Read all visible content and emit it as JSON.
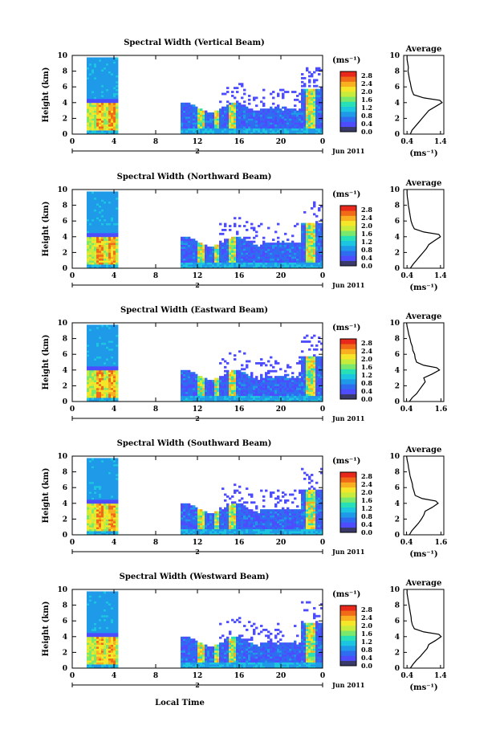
{
  "chart_data": {
    "type": "heatmap",
    "date_label": "Jun 2011",
    "day_label": "2",
    "x_label": "Local Time",
    "time_ticks": [
      "0",
      "4",
      "8",
      "12",
      "16",
      "20",
      "0"
    ],
    "height_ticks": [
      "0",
      "2",
      "4",
      "6",
      "8",
      "10"
    ],
    "y_label": "Height (km)",
    "xlim": [
      0,
      24
    ],
    "ylim": [
      0,
      10
    ],
    "colorbar": {
      "label": "(ms⁻¹)",
      "range": [
        0,
        3.0
      ],
      "ticks": [
        "0.0",
        "0.4",
        "0.8",
        "1.2",
        "1.6",
        "2.0",
        "2.4",
        "2.8"
      ],
      "colors": [
        "#3a3a6a",
        "#4d4dff",
        "#2f6df0",
        "#1f9ae8",
        "#1cc6e0",
        "#28e0b8",
        "#7ae86a",
        "#c8ec3c",
        "#f6e62a",
        "#f8b020",
        "#f06a18",
        "#e8281a"
      ]
    },
    "panels": [
      {
        "title": "Spectral Width (Vertical Beam)",
        "avg_title": "Average",
        "avg_xticks": [
          "0.4",
          "1.4"
        ],
        "avg_xlabel": "(ms⁻¹)",
        "avg_profile": [
          [
            0,
            0.5
          ],
          [
            0.5,
            0.55
          ],
          [
            1,
            0.65
          ],
          [
            1.5,
            0.75
          ],
          [
            2,
            0.85
          ],
          [
            2.5,
            0.95
          ],
          [
            3,
            1.05
          ],
          [
            3.5,
            1.25
          ],
          [
            4,
            1.45
          ],
          [
            4.3,
            1.38
          ],
          [
            4.6,
            0.9
          ],
          [
            5,
            0.6
          ],
          [
            5.5,
            0.55
          ],
          [
            6,
            0.52
          ],
          [
            6.5,
            0.5
          ],
          [
            7,
            0.47
          ],
          [
            7.5,
            0.45
          ],
          [
            8,
            0.43
          ],
          [
            8.5,
            0.44
          ],
          [
            9,
            0.42
          ],
          [
            9.5,
            0.4
          ],
          [
            10,
            0.4
          ]
        ]
      },
      {
        "title": "Spectral Width (Northward Beam)",
        "avg_title": "Average",
        "avg_xticks": [
          "0.4",
          "1.4"
        ],
        "avg_xlabel": "(ms⁻¹)",
        "avg_profile": [
          [
            0,
            0.5
          ],
          [
            0.5,
            0.58
          ],
          [
            1,
            0.68
          ],
          [
            1.5,
            0.78
          ],
          [
            2,
            0.88
          ],
          [
            2.5,
            0.98
          ],
          [
            3,
            1.05
          ],
          [
            3.5,
            1.22
          ],
          [
            4,
            1.4
          ],
          [
            4.3,
            1.35
          ],
          [
            4.6,
            0.9
          ],
          [
            5,
            0.62
          ],
          [
            5.5,
            0.56
          ],
          [
            6,
            0.52
          ],
          [
            6.5,
            0.5
          ],
          [
            7,
            0.48
          ],
          [
            7.5,
            0.46
          ],
          [
            8,
            0.44
          ],
          [
            8.5,
            0.43
          ],
          [
            9,
            0.41
          ],
          [
            9.5,
            0.4
          ],
          [
            10,
            0.4
          ]
        ]
      },
      {
        "title": "Spectral Width (Eastward Beam)",
        "avg_title": "Average",
        "avg_xticks": [
          "0.4",
          "1.6"
        ],
        "avg_xlabel": "",
        "avg_profile": [
          [
            0,
            0.5
          ],
          [
            0.5,
            0.6
          ],
          [
            1,
            0.75
          ],
          [
            1.5,
            0.85
          ],
          [
            2,
            0.95
          ],
          [
            2.5,
            1.05
          ],
          [
            3,
            1.0
          ],
          [
            3.5,
            1.3
          ],
          [
            4,
            1.55
          ],
          [
            4.3,
            1.45
          ],
          [
            4.6,
            1.0
          ],
          [
            5,
            0.75
          ],
          [
            5.5,
            0.7
          ],
          [
            6,
            0.68
          ],
          [
            6.5,
            0.62
          ],
          [
            7,
            0.6
          ],
          [
            7.5,
            0.55
          ],
          [
            8,
            0.52
          ],
          [
            8.5,
            0.48
          ],
          [
            9,
            0.45
          ],
          [
            9.5,
            0.42
          ],
          [
            10,
            0.4
          ]
        ]
      },
      {
        "title": "Spectral Width (Southward Beam)",
        "avg_title": "Average",
        "avg_xticks": [
          "0.4",
          "1.6"
        ],
        "avg_xlabel": "(ms⁻¹)",
        "avg_profile": [
          [
            0,
            0.5
          ],
          [
            0.5,
            0.58
          ],
          [
            1,
            0.7
          ],
          [
            1.5,
            0.82
          ],
          [
            2,
            0.92
          ],
          [
            2.5,
            1.0
          ],
          [
            3,
            1.05
          ],
          [
            3.5,
            1.3
          ],
          [
            4,
            1.5
          ],
          [
            4.3,
            1.42
          ],
          [
            4.6,
            0.95
          ],
          [
            5,
            0.7
          ],
          [
            5.5,
            0.66
          ],
          [
            6,
            0.62
          ],
          [
            6.5,
            0.6
          ],
          [
            7,
            0.56
          ],
          [
            7.5,
            0.52
          ],
          [
            8,
            0.5
          ],
          [
            8.5,
            0.47
          ],
          [
            9,
            0.45
          ],
          [
            9.5,
            0.42
          ],
          [
            10,
            0.4
          ]
        ]
      },
      {
        "title": "Spectral Width (Westward Beam)",
        "avg_title": "Average",
        "avg_xticks": [
          "0.4",
          "1.4"
        ],
        "avg_xlabel": "(ms⁻¹)",
        "avg_profile": [
          [
            0,
            0.5
          ],
          [
            0.5,
            0.58
          ],
          [
            1,
            0.68
          ],
          [
            1.5,
            0.8
          ],
          [
            2,
            0.9
          ],
          [
            2.5,
            1.0
          ],
          [
            3,
            1.05
          ],
          [
            3.5,
            1.25
          ],
          [
            4,
            1.42
          ],
          [
            4.3,
            1.35
          ],
          [
            4.6,
            0.9
          ],
          [
            5,
            0.62
          ],
          [
            5.5,
            0.56
          ],
          [
            6,
            0.53
          ],
          [
            6.5,
            0.52
          ],
          [
            7,
            0.5
          ],
          [
            7.5,
            0.48
          ],
          [
            8,
            0.46
          ],
          [
            8.5,
            0.44
          ],
          [
            9,
            0.42
          ],
          [
            9.5,
            0.4
          ],
          [
            10,
            0.4
          ]
        ]
      }
    ]
  }
}
